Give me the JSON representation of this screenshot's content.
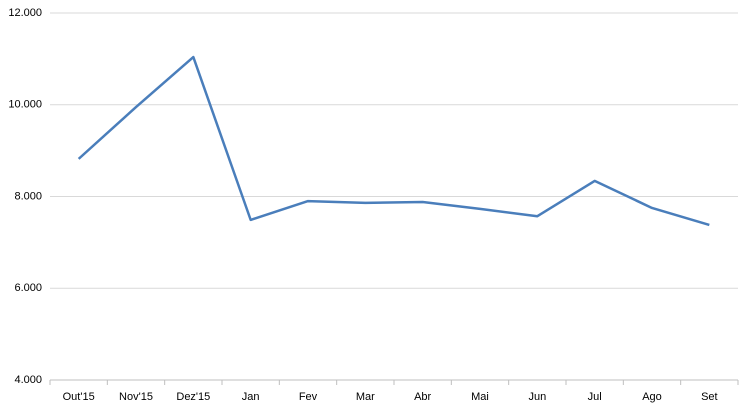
{
  "chart_data": {
    "type": "line",
    "categories": [
      "Out'15",
      "Nov'15",
      "Dez'15",
      "Jan",
      "Fev",
      "Mar",
      "Abr",
      "Mai",
      "Jun",
      "Jul",
      "Ago",
      "Set"
    ],
    "values": [
      8820,
      9950,
      11040,
      7490,
      7900,
      7860,
      7880,
      7730,
      7570,
      8340,
      7750,
      7380
    ],
    "color": "#4a7ebb",
    "ylim": [
      4000,
      12000
    ],
    "yticks": [
      {
        "value": 4000,
        "label": "4.000"
      },
      {
        "value": 6000,
        "label": "6.000"
      },
      {
        "value": 8000,
        "label": "8.000"
      },
      {
        "value": 10000,
        "label": "10.000"
      },
      {
        "value": 12000,
        "label": "12.000"
      }
    ],
    "grid": true
  }
}
